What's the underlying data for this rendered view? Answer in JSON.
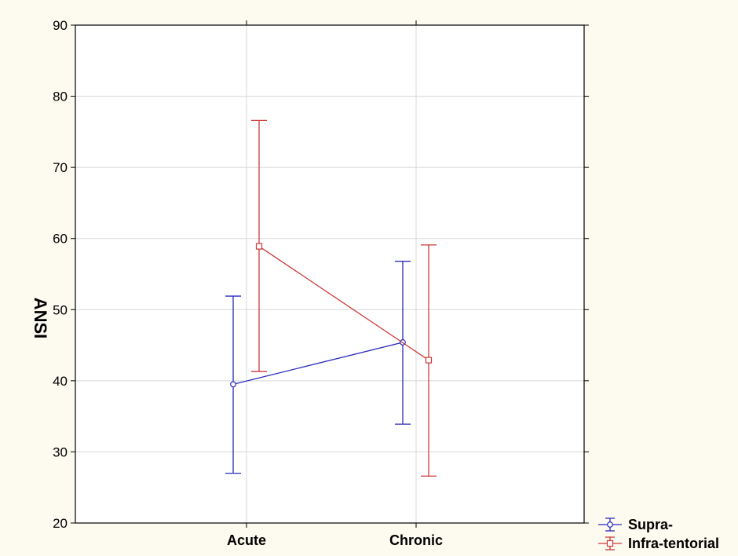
{
  "chart_data": {
    "type": "line",
    "ylabel": "ANSI",
    "xlabel": "",
    "ylim": [
      20,
      90
    ],
    "yticks": [
      20,
      30,
      40,
      50,
      60,
      70,
      80,
      90
    ],
    "categories": [
      "Acute",
      "Chronic"
    ],
    "grid": true,
    "legend_position": "bottom-right",
    "series": [
      {
        "name": "Supra-",
        "color": "#2b2bbd",
        "marker": "circle",
        "values": [
          39.5,
          45.4
        ],
        "lower": [
          27.0,
          33.9
        ],
        "upper": [
          51.9,
          56.8
        ]
      },
      {
        "name": "Infra-tentorial",
        "color": "#cc3a3a",
        "marker": "square",
        "values": [
          58.9,
          42.9
        ],
        "lower": [
          41.3,
          26.6
        ],
        "upper": [
          76.6,
          59.1
        ]
      }
    ]
  }
}
